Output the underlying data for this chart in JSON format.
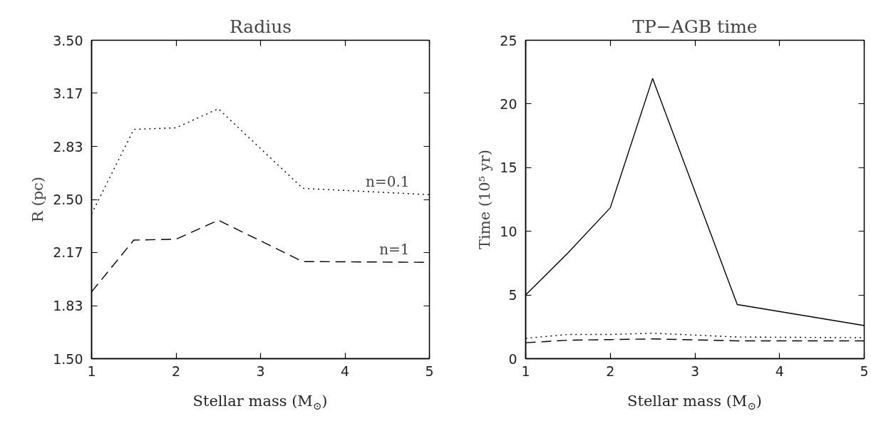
{
  "chart_data": [
    {
      "type": "line",
      "title": "Radius",
      "xlabel": "Stellar mass (M$_{⊙}$)",
      "ylabel": "R (pc)",
      "x": [
        1,
        1.5,
        2,
        2.5,
        3.5,
        5
      ],
      "xlim": [
        1,
        5
      ],
      "xticks": [
        1,
        2,
        3,
        4,
        5
      ],
      "ylim": [
        1.5,
        3.5
      ],
      "yticks": [
        {
          "value": 1.5,
          "label": "1.50"
        },
        {
          "value": 1.8333,
          "label": "1.83"
        },
        {
          "value": 2.1667,
          "label": "2.17"
        },
        {
          "value": 2.5,
          "label": "2.50"
        },
        {
          "value": 2.8333,
          "label": "2.83"
        },
        {
          "value": 3.1667,
          "label": "3.17"
        },
        {
          "value": 3.5,
          "label": "3.50"
        }
      ],
      "grid": false,
      "series": [
        {
          "color": "#000000",
          "line_style": "dotted",
          "values": [
            2.41,
            2.94,
            2.95,
            3.07,
            2.57,
            2.53
          ]
        },
        {
          "color": "#000000",
          "line_style": "dashed",
          "values": [
            1.92,
            2.245,
            2.25,
            2.37,
            2.11,
            2.105
          ]
        }
      ],
      "annotations": [
        "n=0.1",
        "n=1"
      ]
    },
    {
      "type": "line",
      "title": "TP−AGB time",
      "xlabel": "Stellar mass (M$_{⊙}$)",
      "ylabel": "Time (10⁵ yr)",
      "x": [
        1,
        1.5,
        2,
        2.5,
        3.5,
        5
      ],
      "xlim": [
        1,
        5
      ],
      "xticks": [
        1,
        2,
        3,
        4,
        5
      ],
      "ylim": [
        0,
        25
      ],
      "yticks": [
        0,
        5,
        10,
        15,
        20,
        25
      ],
      "grid": false,
      "series": [
        {
          "color": "#000000",
          "line_style": "solid",
          "values": [
            5.0,
            8.3,
            11.85,
            22.0,
            4.25,
            2.6
          ]
        },
        {
          "color": "#000000",
          "line_style": "dotted",
          "values": [
            1.6,
            1.9,
            1.9,
            2.0,
            1.7,
            1.65
          ]
        },
        {
          "color": "#000000",
          "line_style": "dashed",
          "values": [
            1.25,
            1.45,
            1.5,
            1.55,
            1.4,
            1.4
          ]
        }
      ]
    }
  ]
}
